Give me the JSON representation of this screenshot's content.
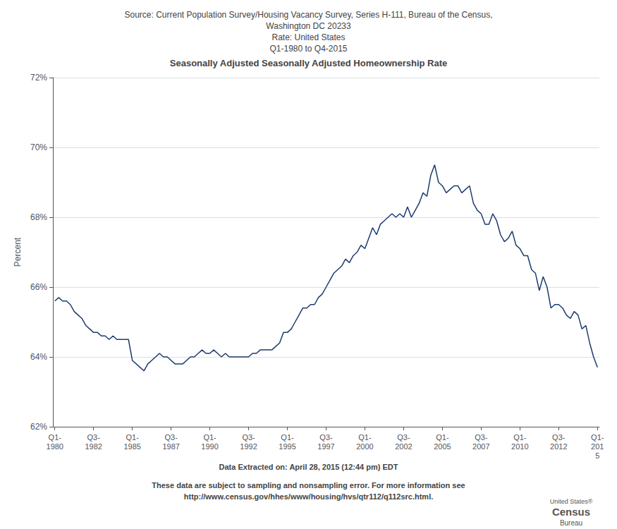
{
  "chart_data": {
    "type": "line",
    "subtitle": "Source: Current Population Survey/Housing Vacancy Survey, Series H-111, Bureau of the Census,\nWashington DC 20233\nRate: United States\nQ1-1980 to Q4-2015",
    "title": "Seasonally Adjusted Seasonally Adjusted Homeownership Rate",
    "ylabel": "Percent",
    "annotations": [
      "Data Extracted on: April 28, 2015 (12:44 pm) EDT",
      "These data are subject to sampling and nonsampling error. For more information see",
      "http://www.census.gov/hhes/www/housing/hvs/qtr112/q112src.html.",
      "United States®",
      "Census",
      "Bureau"
    ],
    "color": "#1C3B6E",
    "grid": true,
    "ylim": [
      62,
      72
    ],
    "yticks": [
      {
        "value": 62,
        "label": "62%"
      },
      {
        "value": 64,
        "label": "64%"
      },
      {
        "value": 66,
        "label": "66%"
      },
      {
        "value": 68,
        "label": "68%"
      },
      {
        "value": 70,
        "label": "70%"
      },
      {
        "value": 72,
        "label": "72%"
      }
    ],
    "categories": [
      "Q1-\n1980",
      null,
      null,
      null,
      null,
      null,
      null,
      null,
      null,
      null,
      "Q3-\n1982",
      null,
      null,
      null,
      null,
      null,
      null,
      null,
      null,
      null,
      "Q1-\n1985",
      null,
      null,
      null,
      null,
      null,
      null,
      null,
      null,
      null,
      "Q3-\n1987",
      null,
      null,
      null,
      null,
      null,
      null,
      null,
      null,
      null,
      "Q1-\n1990",
      null,
      null,
      null,
      null,
      null,
      null,
      null,
      null,
      null,
      "Q3-\n1992",
      null,
      null,
      null,
      null,
      null,
      null,
      null,
      null,
      null,
      "Q1-\n1995",
      null,
      null,
      null,
      null,
      null,
      null,
      null,
      null,
      null,
      "Q3-\n1997",
      null,
      null,
      null,
      null,
      null,
      null,
      null,
      null,
      null,
      "Q1-\n2000",
      null,
      null,
      null,
      null,
      null,
      null,
      null,
      null,
      null,
      "Q3-\n2002",
      null,
      null,
      null,
      null,
      null,
      null,
      null,
      null,
      null,
      "Q1-\n2005",
      null,
      null,
      null,
      null,
      null,
      null,
      null,
      null,
      null,
      "Q3-\n2007",
      null,
      null,
      null,
      null,
      null,
      null,
      null,
      null,
      null,
      "Q1-\n2010",
      null,
      null,
      null,
      null,
      null,
      null,
      null,
      null,
      null,
      "Q3-\n2012",
      null,
      null,
      null,
      null,
      null,
      null,
      null,
      null,
      null,
      "Q1-\n201\n5"
    ],
    "values": [
      65.6,
      65.7,
      65.6,
      65.6,
      65.5,
      65.3,
      65.2,
      65.1,
      64.9,
      64.8,
      64.7,
      64.7,
      64.6,
      64.6,
      64.5,
      64.6,
      64.5,
      64.5,
      64.5,
      64.5,
      63.9,
      63.8,
      63.7,
      63.6,
      63.8,
      63.9,
      64.0,
      64.1,
      64.0,
      64.0,
      63.9,
      63.8,
      63.8,
      63.8,
      63.9,
      64.0,
      64.0,
      64.1,
      64.2,
      64.1,
      64.1,
      64.2,
      64.1,
      64.0,
      64.1,
      64.0,
      64.0,
      64.0,
      64.0,
      64.0,
      64.0,
      64.1,
      64.1,
      64.2,
      64.2,
      64.2,
      64.2,
      64.3,
      64.4,
      64.7,
      64.7,
      64.8,
      65.0,
      65.2,
      65.4,
      65.4,
      65.5,
      65.5,
      65.7,
      65.8,
      66.0,
      66.2,
      66.4,
      66.5,
      66.6,
      66.8,
      66.7,
      66.9,
      67.0,
      67.2,
      67.1,
      67.4,
      67.7,
      67.5,
      67.8,
      67.9,
      68.0,
      68.1,
      68.0,
      68.1,
      68.0,
      68.3,
      68.0,
      68.2,
      68.4,
      68.7,
      68.6,
      69.2,
      69.5,
      69.0,
      68.9,
      68.7,
      68.8,
      68.9,
      68.9,
      68.7,
      68.8,
      68.9,
      68.4,
      68.2,
      68.1,
      67.8,
      67.8,
      68.1,
      67.9,
      67.5,
      67.3,
      67.4,
      67.6,
      67.2,
      67.1,
      66.9,
      66.9,
      66.5,
      66.4,
      65.9,
      66.3,
      66.0,
      65.4,
      65.5,
      65.5,
      65.4,
      65.2,
      65.1,
      65.3,
      65.2,
      64.8,
      64.9,
      64.4,
      64.0,
      63.7
    ]
  }
}
